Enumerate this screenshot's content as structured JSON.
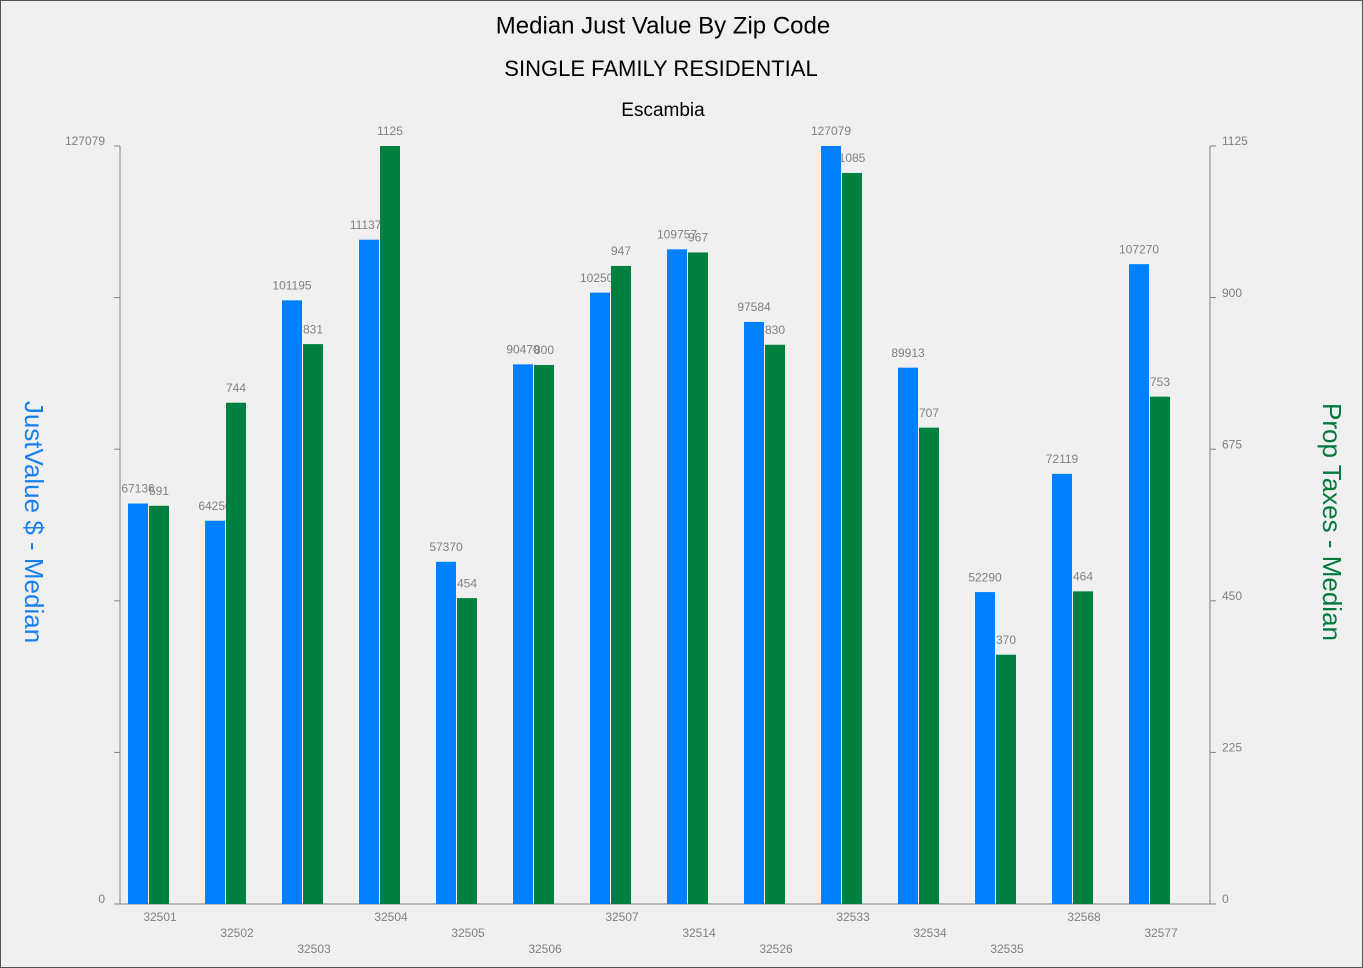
{
  "chart_data": {
    "type": "bar",
    "title": "Median Just Value By Zip Code",
    "subtitle": "SINGLE FAMILY RESIDENTIAL",
    "region": "Escambia",
    "y_label": "JustValue $ - Median",
    "y2_label": "Prop Taxes - Median",
    "categories": [
      "32501",
      "32502",
      "32503",
      "32504",
      "32505",
      "32506",
      "32507",
      "32514",
      "32526",
      "32533",
      "32534",
      "32535",
      "32568",
      "32577"
    ],
    "series": [
      {
        "name": "JustValue $ - Median",
        "color": "#0080ff",
        "axis": "y",
        "values": [
          67136,
          64250,
          101195,
          111370,
          57370,
          90470,
          102500,
          109757,
          97584,
          127079,
          89913,
          52290,
          72119,
          107270
        ]
      },
      {
        "name": "Prop Taxes - Median",
        "color": "#008040",
        "axis": "y2",
        "values": [
          591,
          744,
          831,
          1125,
          454,
          800,
          947,
          967,
          830,
          1085,
          707,
          370,
          464,
          753
        ]
      }
    ],
    "ylim": [
      0,
      127079
    ],
    "yticks": [
      0,
      127079
    ],
    "y2lim": [
      0,
      1125
    ],
    "y2ticks": [
      0,
      225,
      450,
      675,
      900,
      1125
    ],
    "grid": false
  }
}
